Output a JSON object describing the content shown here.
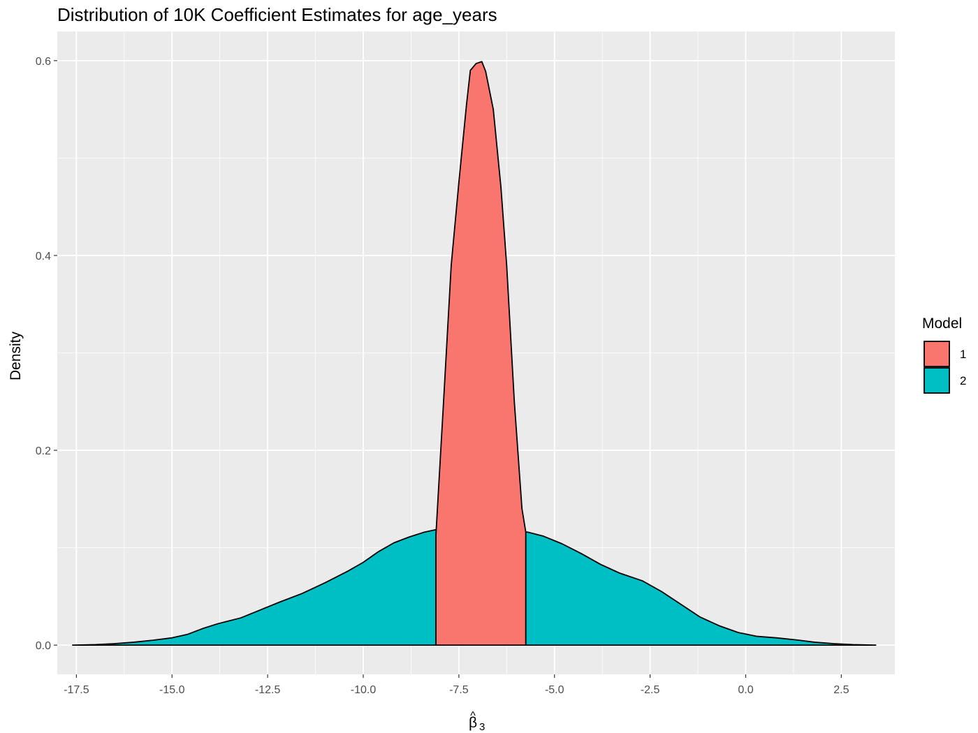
{
  "chart_data": {
    "type": "area",
    "title": "Distribution of 10K Coefficient Estimates for age_years",
    "xlabel_symbol": "β",
    "xlabel_hat": "^",
    "xlabel_subscript": "3",
    "ylabel": "Density",
    "xlim": [
      -18.0,
      3.9
    ],
    "ylim": [
      -0.03,
      0.63
    ],
    "x_ticks": [
      -17.5,
      -15.0,
      -12.5,
      -10.0,
      -7.5,
      -5.0,
      -2.5,
      0.0,
      2.5
    ],
    "x_tick_labels": [
      "-17.5",
      "-15.0",
      "-12.5",
      "-10.0",
      "-7.5",
      "-5.0",
      "-2.5",
      "0.0",
      "2.5"
    ],
    "y_ticks": [
      0.0,
      0.2,
      0.4,
      0.6
    ],
    "y_tick_labels": [
      "0.0",
      "0.2",
      "0.4",
      "0.6"
    ],
    "grid": true,
    "legend": {
      "title": "Model",
      "position": "right"
    },
    "series": [
      {
        "name": "2",
        "color": "#00BFC4",
        "points": [
          [
            -17.6,
            0.0
          ],
          [
            -17.0,
            0.0005
          ],
          [
            -16.5,
            0.0015
          ],
          [
            -16.0,
            0.003
          ],
          [
            -15.5,
            0.005
          ],
          [
            -15.0,
            0.0075
          ],
          [
            -14.6,
            0.011
          ],
          [
            -14.2,
            0.017
          ],
          [
            -13.8,
            0.022
          ],
          [
            -13.2,
            0.028
          ],
          [
            -12.7,
            0.036
          ],
          [
            -12.2,
            0.044
          ],
          [
            -11.6,
            0.053
          ],
          [
            -11.0,
            0.064
          ],
          [
            -10.4,
            0.076
          ],
          [
            -10.0,
            0.085
          ],
          [
            -9.6,
            0.096
          ],
          [
            -9.2,
            0.105
          ],
          [
            -8.8,
            0.111
          ],
          [
            -8.4,
            0.116
          ],
          [
            -7.8,
            0.121
          ],
          [
            -7.5,
            0.1235
          ],
          [
            -7.2,
            0.124
          ],
          [
            -6.9,
            0.123
          ],
          [
            -6.5,
            0.121
          ],
          [
            -6.1,
            0.117
          ],
          [
            -5.7,
            0.116
          ],
          [
            -5.3,
            0.112
          ],
          [
            -4.8,
            0.104
          ],
          [
            -4.3,
            0.094
          ],
          [
            -3.8,
            0.083
          ],
          [
            -3.3,
            0.074
          ],
          [
            -2.7,
            0.066
          ],
          [
            -2.2,
            0.055
          ],
          [
            -1.7,
            0.042
          ],
          [
            -1.2,
            0.029
          ],
          [
            -0.7,
            0.02
          ],
          [
            -0.2,
            0.013
          ],
          [
            0.3,
            0.009
          ],
          [
            0.8,
            0.0075
          ],
          [
            1.3,
            0.0055
          ],
          [
            1.8,
            0.003
          ],
          [
            2.3,
            0.0015
          ],
          [
            2.8,
            0.0005
          ],
          [
            3.4,
            0.0
          ]
        ]
      },
      {
        "name": "1",
        "color": "#F8766D",
        "points": [
          [
            -8.1,
            0.113
          ],
          [
            -7.9,
            0.25
          ],
          [
            -7.7,
            0.39
          ],
          [
            -7.5,
            0.475
          ],
          [
            -7.3,
            0.555
          ],
          [
            -7.2,
            0.59
          ],
          [
            -7.05,
            0.597
          ],
          [
            -6.9,
            0.599
          ],
          [
            -6.8,
            0.589
          ],
          [
            -6.6,
            0.55
          ],
          [
            -6.4,
            0.47
          ],
          [
            -6.25,
            0.39
          ],
          [
            -6.05,
            0.25
          ],
          [
            -5.85,
            0.14
          ],
          [
            -5.75,
            0.116
          ]
        ]
      }
    ]
  }
}
